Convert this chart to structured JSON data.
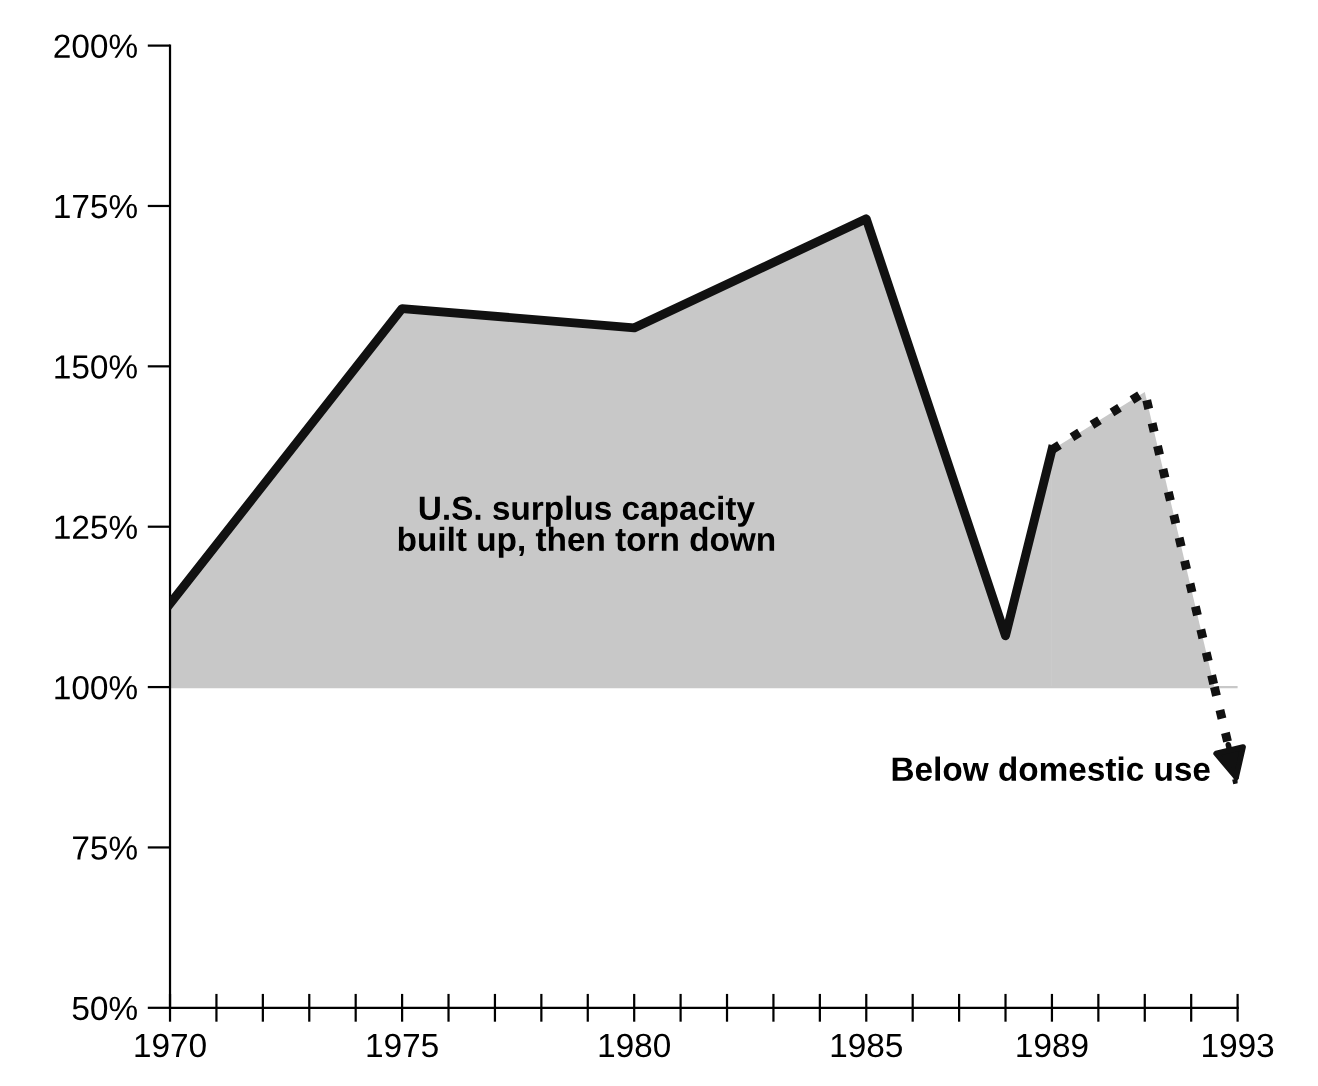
{
  "chart_data": {
    "type": "area",
    "ref_lines": [
      {
        "axis": "y",
        "value": 100,
        "label": null,
        "color": "#c8c8c8"
      }
    ],
    "series": [
      {
        "color": "#111111",
        "line_style": "solid",
        "x": [
          1970,
          1975,
          1980,
          1985,
          1988,
          1989
        ],
        "values": [
          113,
          159,
          156,
          173,
          108,
          137
        ]
      },
      {
        "color": "#111111",
        "line_style": "dotted",
        "x": [
          1989,
          1991,
          1992.5
        ],
        "values": [
          137,
          146,
          100
        ]
      },
      {
        "type": "line",
        "color": "#111111",
        "line_style": "dotted",
        "x": [
          1992.5,
          1993
        ],
        "values": [
          100,
          85
        ]
      }
    ],
    "xlim": [
      1970,
      1993
    ],
    "ylim": [
      50,
      200
    ],
    "xticks": [
      1970,
      {
        "value": 1971,
        "label": null
      },
      {
        "value": 1972,
        "label": null
      },
      {
        "value": 1973,
        "label": null
      },
      {
        "value": 1974,
        "label": null
      },
      1975,
      {
        "value": 1976,
        "label": null
      },
      {
        "value": 1977,
        "label": null
      },
      {
        "value": 1978,
        "label": null
      },
      {
        "value": 1979,
        "label": null
      },
      1980,
      {
        "value": 1981,
        "label": null
      },
      {
        "value": 1982,
        "label": null
      },
      {
        "value": 1983,
        "label": null
      },
      {
        "value": 1984,
        "label": null
      },
      1985,
      {
        "value": 1986,
        "label": null
      },
      {
        "value": 1987,
        "label": null
      },
      {
        "value": 1988,
        "label": null
      },
      1989,
      {
        "value": 1990,
        "label": null
      },
      {
        "value": 1991,
        "label": null
      },
      {
        "value": 1992,
        "label": null
      },
      1993
    ],
    "yticks": [
      {
        "value": 50,
        "label": "50%"
      },
      {
        "value": 75,
        "label": "75%"
      },
      {
        "value": 100,
        "label": "100%"
      },
      {
        "value": 125,
        "label": "125%"
      },
      {
        "value": 150,
        "label": "150%"
      },
      {
        "value": 175,
        "label": "175%"
      },
      {
        "value": 200,
        "label": "200%"
      }
    ],
    "annotations": [
      "U.S. surplus capacity\nbuilt up, then torn down",
      "Below domestic use"
    ]
  }
}
